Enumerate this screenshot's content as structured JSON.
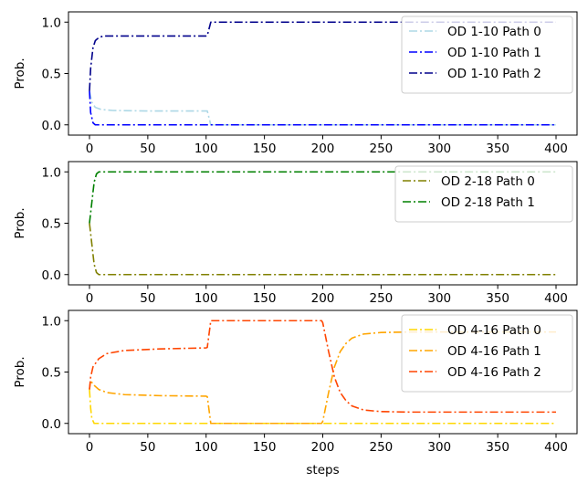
{
  "chart_data": [
    {
      "type": "line",
      "xlabel": "",
      "ylabel": "Prob.",
      "xlim": [
        -18,
        418
      ],
      "ylim": [
        -0.1,
        1.1
      ],
      "xticks": [
        0,
        50,
        100,
        150,
        200,
        250,
        300,
        350,
        400
      ],
      "yticks": [
        0.0,
        0.5,
        1.0
      ],
      "xtick_labels": [
        "0",
        "50",
        "100",
        "150",
        "200",
        "250",
        "300",
        "350",
        "400"
      ],
      "ytick_labels": [
        "0.0",
        "0.5",
        "1.0"
      ],
      "legend_position": "upper-right",
      "series": [
        {
          "name": "OD 1-10 Path 0",
          "color": "#add8e6",
          "points": [
            [
              0,
              0.33
            ],
            [
              2,
              0.22
            ],
            [
              5,
              0.17
            ],
            [
              10,
              0.15
            ],
            [
              20,
              0.14
            ],
            [
              50,
              0.135
            ],
            [
              100,
              0.135
            ],
            [
              101,
              0.135
            ],
            [
              104,
              0.0
            ],
            [
              400,
              0.0
            ]
          ]
        },
        {
          "name": "OD 1-10 Path 1",
          "color": "#0000ff",
          "points": [
            [
              0,
              0.33
            ],
            [
              1,
              0.12
            ],
            [
              3,
              0.02
            ],
            [
              5,
              0.0
            ],
            [
              400,
              0.0
            ]
          ]
        },
        {
          "name": "OD 1-10 Path 2",
          "color": "#00008b",
          "points": [
            [
              0,
              0.33
            ],
            [
              1,
              0.55
            ],
            [
              3,
              0.75
            ],
            [
              5,
              0.82
            ],
            [
              8,
              0.85
            ],
            [
              12,
              0.865
            ],
            [
              30,
              0.865
            ],
            [
              100,
              0.865
            ],
            [
              101,
              0.87
            ],
            [
              104,
              1.0
            ],
            [
              400,
              1.0
            ]
          ]
        }
      ]
    },
    {
      "type": "line",
      "xlabel": "",
      "ylabel": "Prob.",
      "xlim": [
        -18,
        418
      ],
      "ylim": [
        -0.1,
        1.1
      ],
      "xticks": [
        0,
        50,
        100,
        150,
        200,
        250,
        300,
        350,
        400
      ],
      "yticks": [
        0.0,
        0.5,
        1.0
      ],
      "xtick_labels": [
        "0",
        "50",
        "100",
        "150",
        "200",
        "250",
        "300",
        "350",
        "400"
      ],
      "ytick_labels": [
        "0.0",
        "0.5",
        "1.0"
      ],
      "legend_position": "upper-right",
      "series": [
        {
          "name": "OD 2-18 Path 0",
          "color": "#808000",
          "points": [
            [
              0,
              0.5
            ],
            [
              2,
              0.3
            ],
            [
              4,
              0.1
            ],
            [
              6,
              0.02
            ],
            [
              8,
              0.0
            ],
            [
              400,
              0.0
            ]
          ]
        },
        {
          "name": "OD 2-18 Path 1",
          "color": "#008000",
          "points": [
            [
              0,
              0.5
            ],
            [
              2,
              0.7
            ],
            [
              4,
              0.9
            ],
            [
              6,
              0.98
            ],
            [
              8,
              1.0
            ],
            [
              400,
              1.0
            ]
          ]
        }
      ]
    },
    {
      "type": "line",
      "xlabel": "steps",
      "ylabel": "Prob.",
      "xlim": [
        -18,
        418
      ],
      "ylim": [
        -0.1,
        1.1
      ],
      "xticks": [
        0,
        50,
        100,
        150,
        200,
        250,
        300,
        350,
        400
      ],
      "yticks": [
        0.0,
        0.5,
        1.0
      ],
      "xtick_labels": [
        "0",
        "50",
        "100",
        "150",
        "200",
        "250",
        "300",
        "350",
        "400"
      ],
      "ytick_labels": [
        "0.0",
        "0.5",
        "1.0"
      ],
      "legend_position": "upper-right",
      "series": [
        {
          "name": "OD 4-16 Path 0",
          "color": "#ffd700",
          "points": [
            [
              0,
              0.33
            ],
            [
              1,
              0.15
            ],
            [
              2,
              0.05
            ],
            [
              4,
              0.0
            ],
            [
              400,
              0.0
            ]
          ]
        },
        {
          "name": "OD 4-16 Path 1",
          "color": "#ffa500",
          "points": [
            [
              0,
              0.33
            ],
            [
              1,
              0.42
            ],
            [
              3,
              0.38
            ],
            [
              8,
              0.33
            ],
            [
              15,
              0.3
            ],
            [
              30,
              0.28
            ],
            [
              60,
              0.27
            ],
            [
              100,
              0.265
            ],
            [
              101,
              0.26
            ],
            [
              104,
              0.0
            ],
            [
              199,
              0.0
            ],
            [
              200,
              0.02
            ],
            [
              205,
              0.3
            ],
            [
              210,
              0.55
            ],
            [
              215,
              0.7
            ],
            [
              220,
              0.78
            ],
            [
              225,
              0.83
            ],
            [
              235,
              0.87
            ],
            [
              250,
              0.885
            ],
            [
              275,
              0.89
            ],
            [
              400,
              0.89
            ]
          ]
        },
        {
          "name": "OD 4-16 Path 2",
          "color": "#ff4500",
          "points": [
            [
              0,
              0.33
            ],
            [
              1,
              0.45
            ],
            [
              3,
              0.55
            ],
            [
              8,
              0.63
            ],
            [
              15,
              0.68
            ],
            [
              30,
              0.71
            ],
            [
              60,
              0.725
            ],
            [
              100,
              0.735
            ],
            [
              101,
              0.74
            ],
            [
              104,
              1.0
            ],
            [
              199,
              1.0
            ],
            [
              200,
              0.98
            ],
            [
              205,
              0.7
            ],
            [
              210,
              0.45
            ],
            [
              215,
              0.3
            ],
            [
              220,
              0.22
            ],
            [
              225,
              0.17
            ],
            [
              235,
              0.13
            ],
            [
              250,
              0.115
            ],
            [
              275,
              0.11
            ],
            [
              400,
              0.11
            ]
          ]
        }
      ]
    }
  ]
}
